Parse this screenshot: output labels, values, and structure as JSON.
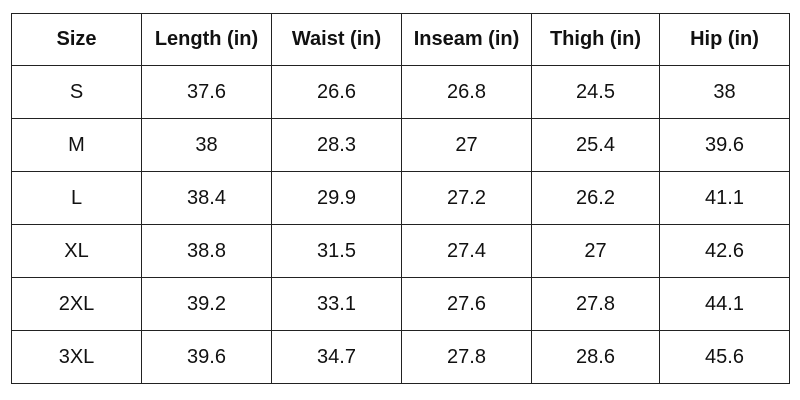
{
  "table": {
    "header": [
      "Size",
      "Length (in)",
      "Waist (in)",
      "Inseam (in)",
      "Thigh (in)",
      "Hip (in)"
    ],
    "rows": [
      [
        "S",
        "37.6",
        "26.6",
        "26.8",
        "24.5",
        "38"
      ],
      [
        "M",
        "38",
        "28.3",
        "27",
        "25.4",
        "39.6"
      ],
      [
        "L",
        "38.4",
        "29.9",
        "27.2",
        "26.2",
        "41.1"
      ],
      [
        "XL",
        "38.8",
        "31.5",
        "27.4",
        "27",
        "42.6"
      ],
      [
        "2XL",
        "39.2",
        "33.1",
        "27.6",
        "27.8",
        "44.1"
      ],
      [
        "3XL",
        "39.6",
        "34.7",
        "27.8",
        "28.6",
        "45.6"
      ]
    ]
  }
}
